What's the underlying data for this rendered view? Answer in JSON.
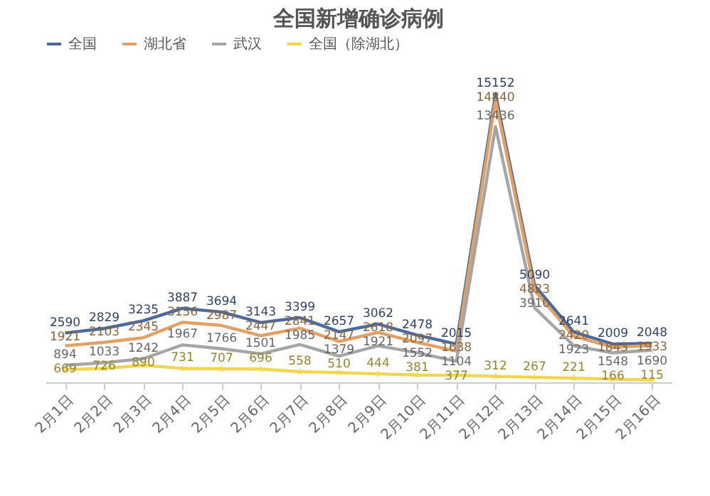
{
  "chart_data": {
    "type": "line",
    "title": "全国新增确诊病例",
    "categories": [
      "2月1日",
      "2月2日",
      "2月3日",
      "2月4日",
      "2月5日",
      "2月6日",
      "2月7日",
      "2月8日",
      "2月9日",
      "2月10日",
      "2月11日",
      "2月12日",
      "2月13日",
      "2月14日",
      "2月15日",
      "2月16日"
    ],
    "series": [
      {
        "name": "全国",
        "color": "#4a6b9c",
        "values": [
          2590,
          2829,
          3235,
          3887,
          3694,
          3143,
          3399,
          2657,
          3062,
          2478,
          2015,
          15152,
          5090,
          2641,
          2009,
          2048
        ]
      },
      {
        "name": "湖北省",
        "color": "#e0a163",
        "values": [
          1921,
          2103,
          2345,
          3156,
          2987,
          2447,
          2841,
          2147,
          2618,
          2097,
          1638,
          14840,
          4823,
          2420,
          1843,
          1933
        ]
      },
      {
        "name": "武汉",
        "color": "#a5a5a5",
        "values": [
          894,
          1033,
          1242,
          1967,
          1766,
          1501,
          1985,
          1379,
          1921,
          1552,
          1104,
          13436,
          3910,
          1923,
          1548,
          1690
        ]
      },
      {
        "name": "全国（除湖北）",
        "color": "#f2d64b",
        "marker": "star",
        "values": [
          669,
          726,
          890,
          731,
          707,
          696,
          558,
          510,
          444,
          381,
          377,
          312,
          267,
          221,
          166,
          115
        ]
      }
    ],
    "data_labels": true,
    "legend": "top"
  }
}
